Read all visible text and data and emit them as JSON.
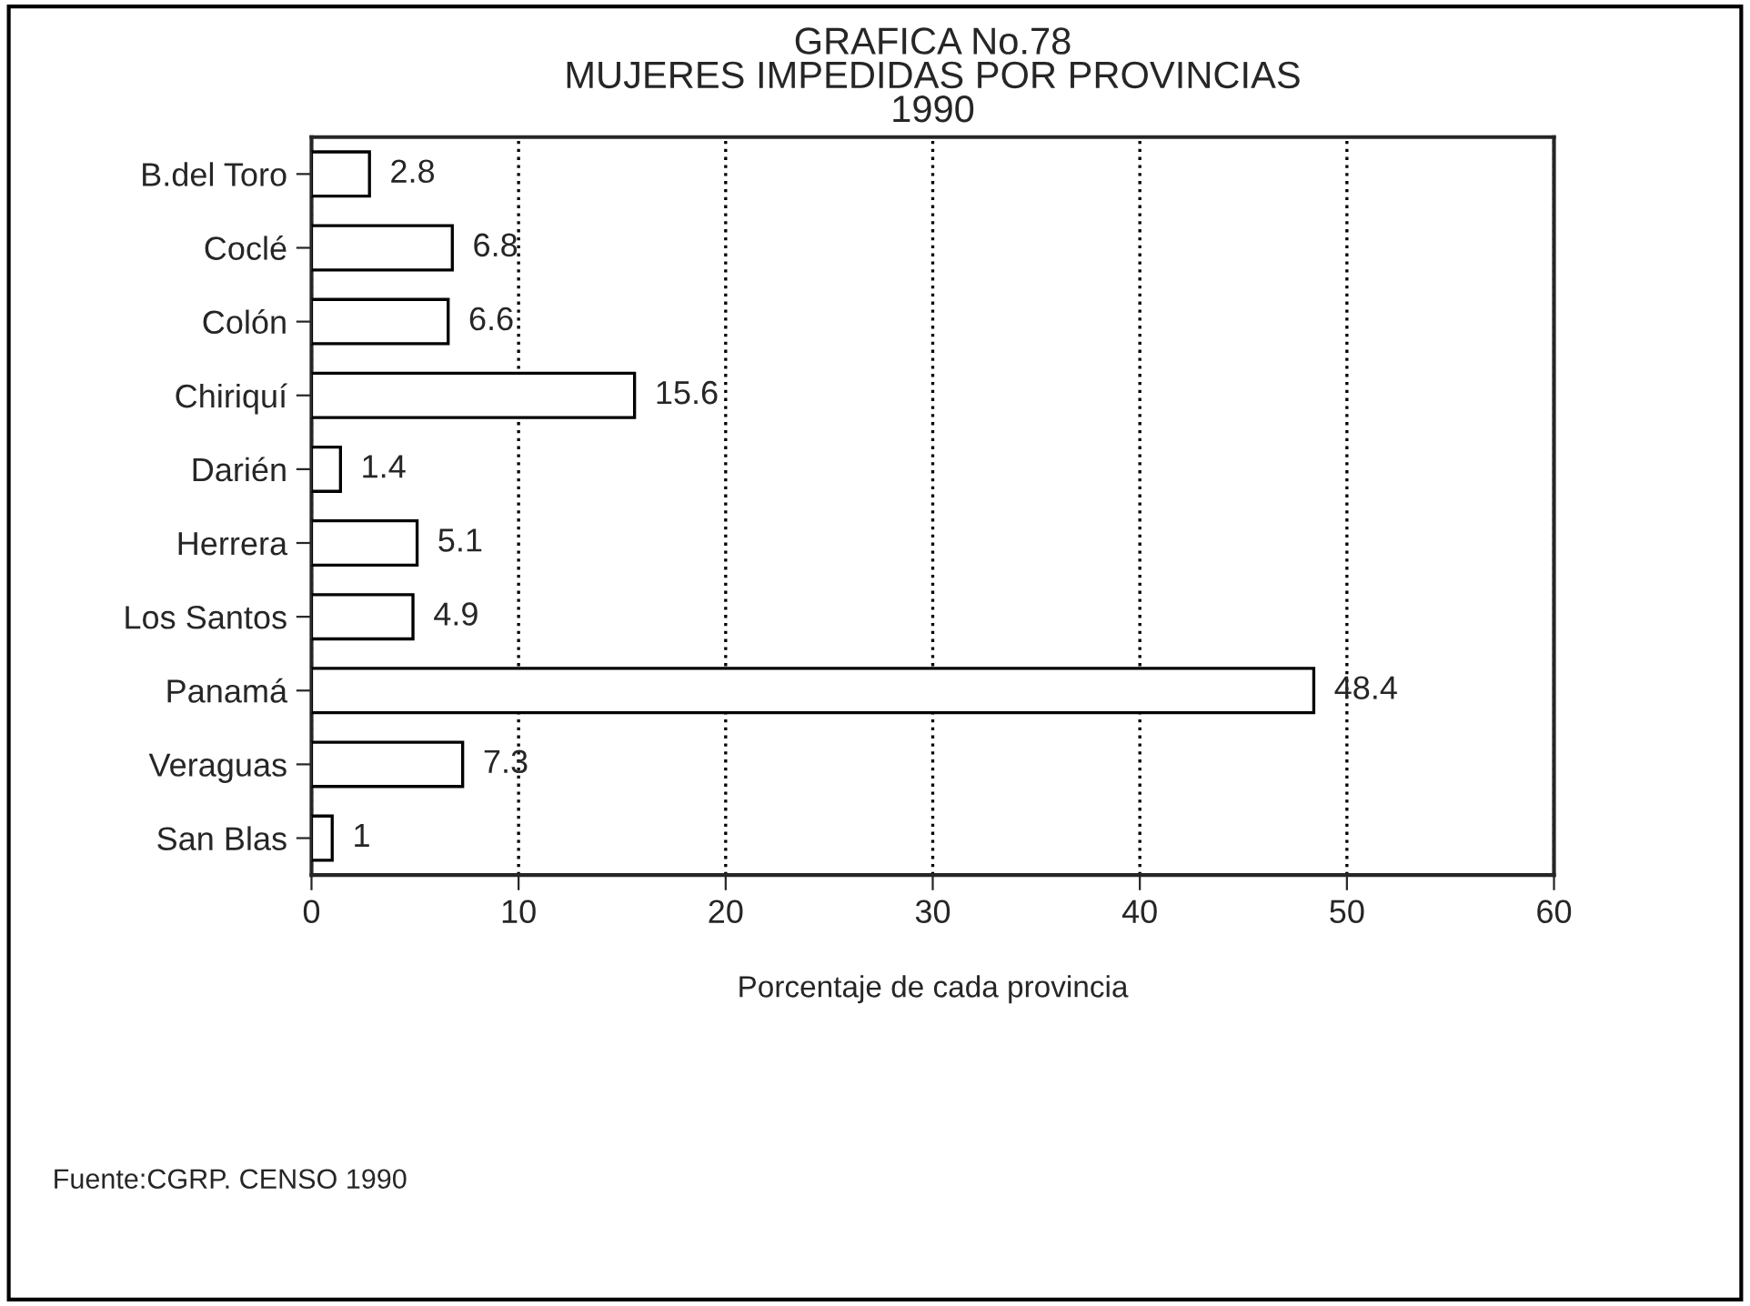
{
  "chart_data": {
    "type": "bar",
    "orientation": "horizontal",
    "title": "GRAFICA No.78\nMUJERES IMPEDIDAS POR PROVINCIAS\n1990",
    "categories": [
      "B.del Toro",
      "Coclé",
      "Colón",
      "Chiriquí",
      "Darién",
      "Herrera",
      "Los Santos",
      "Panamá",
      "Veraguas",
      "San Blas"
    ],
    "values": [
      2.8,
      6.8,
      6.6,
      15.6,
      1.4,
      5.1,
      4.9,
      48.4,
      7.3,
      1
    ],
    "color": "#ffffff",
    "data_labels": true,
    "xlim": [
      0,
      60
    ],
    "xticks": [
      0,
      10,
      20,
      30,
      40,
      50,
      60
    ],
    "grid": "x",
    "xlabel": "Porcentaje de cada provincia",
    "annotations": [
      "Fuente:CGRP. CENSO 1990"
    ]
  }
}
